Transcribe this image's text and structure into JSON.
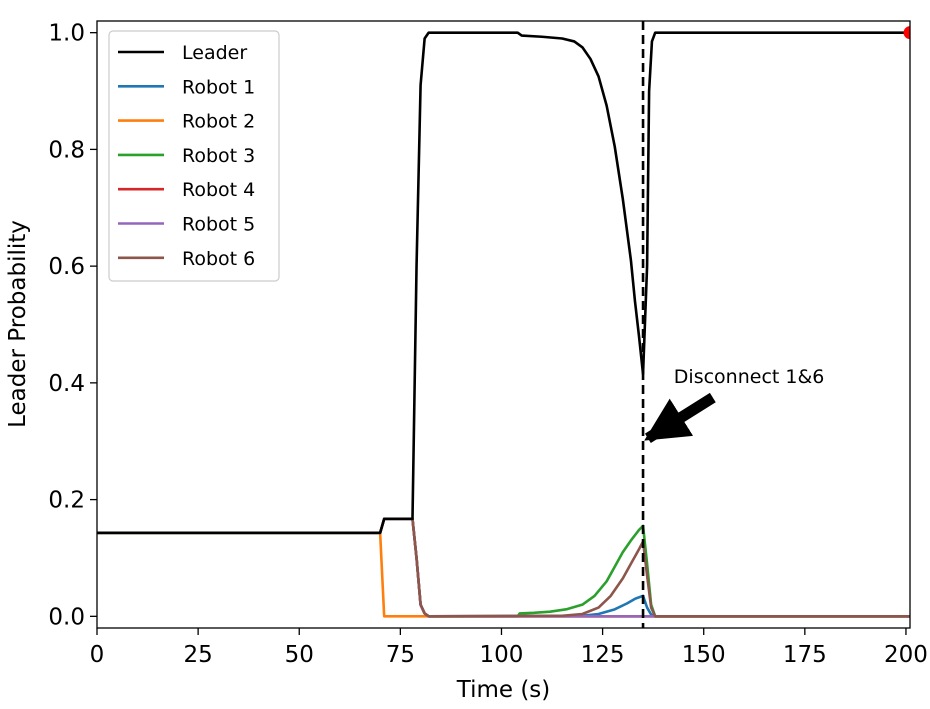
{
  "chart_data": {
    "type": "line",
    "title": "",
    "xlabel": "Time (s)",
    "ylabel": "Leader Probability",
    "xlim": [
      0,
      201
    ],
    "ylim": [
      -0.02,
      1.02
    ],
    "xticks": [
      0,
      25,
      50,
      75,
      100,
      125,
      150,
      175,
      200
    ],
    "xtick_labels": [
      "0",
      "25",
      "50",
      "75",
      "100",
      "125",
      "150",
      "175",
      "200"
    ],
    "yticks": [
      0.0,
      0.2,
      0.4,
      0.6,
      0.8,
      1.0
    ],
    "ytick_labels": [
      "0.0",
      "0.2",
      "0.4",
      "0.6",
      "0.8",
      "1.0"
    ],
    "grid": false,
    "legend_position": "upper-left",
    "series": [
      {
        "name": "Leader",
        "color": "#000000",
        "points": [
          [
            0,
            0.143
          ],
          [
            70,
            0.143
          ],
          [
            71,
            0.167
          ],
          [
            78,
            0.167
          ],
          [
            79,
            0.6
          ],
          [
            80,
            0.91
          ],
          [
            81,
            0.99
          ],
          [
            82,
            1.0
          ],
          [
            104,
            1.0
          ],
          [
            105,
            0.995
          ],
          [
            110,
            0.993
          ],
          [
            115,
            0.99
          ],
          [
            118,
            0.985
          ],
          [
            120,
            0.975
          ],
          [
            122,
            0.955
          ],
          [
            124,
            0.925
          ],
          [
            126,
            0.875
          ],
          [
            128,
            0.805
          ],
          [
            130,
            0.715
          ],
          [
            132,
            0.61
          ],
          [
            133,
            0.54
          ],
          [
            134,
            0.48
          ],
          [
            135,
            0.415
          ],
          [
            136,
            0.6
          ],
          [
            136.5,
            0.9
          ],
          [
            137.2,
            0.985
          ],
          [
            138,
            1.0
          ],
          [
            201,
            1.0
          ]
        ]
      },
      {
        "name": "Robot 1",
        "color": "#1f77b4",
        "points": [
          [
            0,
            0.143
          ],
          [
            70,
            0.143
          ],
          [
            71,
            0.167
          ],
          [
            78,
            0.167
          ],
          [
            79,
            0.1
          ],
          [
            80,
            0.02
          ],
          [
            81,
            0.005
          ],
          [
            82,
            0.0
          ],
          [
            120,
            0.001
          ],
          [
            124,
            0.004
          ],
          [
            128,
            0.012
          ],
          [
            131,
            0.022
          ],
          [
            133,
            0.03
          ],
          [
            135,
            0.035
          ],
          [
            136,
            0.015
          ],
          [
            137,
            0.003
          ],
          [
            138,
            0.0
          ],
          [
            201,
            0.0
          ]
        ]
      },
      {
        "name": "Robot 2",
        "color": "#ff7f0e",
        "points": [
          [
            0,
            0.143
          ],
          [
            70,
            0.143
          ],
          [
            71,
            0.0
          ],
          [
            201,
            0.0
          ]
        ]
      },
      {
        "name": "Robot 3",
        "color": "#2ca02c",
        "points": [
          [
            0,
            0.143
          ],
          [
            70,
            0.143
          ],
          [
            71,
            0.167
          ],
          [
            78,
            0.167
          ],
          [
            79,
            0.1
          ],
          [
            80,
            0.02
          ],
          [
            81,
            0.005
          ],
          [
            82,
            0.0
          ],
          [
            104,
            0.0
          ],
          [
            104.5,
            0.005
          ],
          [
            108,
            0.006
          ],
          [
            112,
            0.008
          ],
          [
            116,
            0.012
          ],
          [
            120,
            0.02
          ],
          [
            123,
            0.035
          ],
          [
            126,
            0.06
          ],
          [
            128,
            0.085
          ],
          [
            130,
            0.11
          ],
          [
            132,
            0.13
          ],
          [
            134,
            0.148
          ],
          [
            135,
            0.155
          ],
          [
            136,
            0.09
          ],
          [
            137,
            0.02
          ],
          [
            138,
            0.0
          ],
          [
            201,
            0.0
          ]
        ]
      },
      {
        "name": "Robot 4",
        "color": "#d62728",
        "points": [
          [
            0,
            0.143
          ],
          [
            70,
            0.143
          ],
          [
            71,
            0.167
          ],
          [
            78,
            0.167
          ],
          [
            79,
            0.1
          ],
          [
            80,
            0.02
          ],
          [
            81,
            0.005
          ],
          [
            82,
            0.0
          ],
          [
            201,
            0.0
          ]
        ]
      },
      {
        "name": "Robot 5",
        "color": "#9467bd",
        "points": [
          [
            0,
            0.143
          ],
          [
            70,
            0.143
          ],
          [
            71,
            0.167
          ],
          [
            78,
            0.167
          ],
          [
            79,
            0.1
          ],
          [
            80,
            0.02
          ],
          [
            81,
            0.005
          ],
          [
            82,
            0.0
          ],
          [
            201,
            0.0
          ]
        ]
      },
      {
        "name": "Robot 6",
        "color": "#8c564b",
        "points": [
          [
            0,
            0.143
          ],
          [
            70,
            0.143
          ],
          [
            71,
            0.167
          ],
          [
            78,
            0.167
          ],
          [
            79,
            0.1
          ],
          [
            80,
            0.02
          ],
          [
            81,
            0.005
          ],
          [
            82,
            0.0
          ],
          [
            115,
            0.001
          ],
          [
            120,
            0.004
          ],
          [
            124,
            0.015
          ],
          [
            127,
            0.035
          ],
          [
            130,
            0.065
          ],
          [
            132,
            0.09
          ],
          [
            134,
            0.115
          ],
          [
            135,
            0.128
          ],
          [
            136,
            0.07
          ],
          [
            137,
            0.015
          ],
          [
            138,
            0.0
          ],
          [
            201,
            0.0
          ]
        ]
      }
    ],
    "vline": {
      "x": 135,
      "style": "dashed",
      "color": "#000000"
    },
    "marker": {
      "x": 201,
      "y": 1.0,
      "color": "#ff0000"
    },
    "annotation": {
      "text": "Disconnect 1&6",
      "text_x": 152,
      "text_y": 0.41,
      "arrow_tail_x": 152,
      "arrow_tail_y": 0.38,
      "arrow_head_x": 136.2,
      "arrow_head_y": 0.305
    }
  }
}
